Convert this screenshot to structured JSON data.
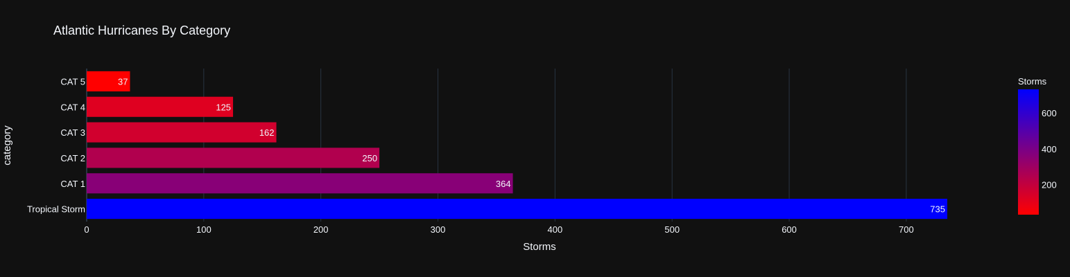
{
  "colors": {
    "background": "#111111",
    "grid": "#283442",
    "text": "#f2f5fa",
    "scale_low": "#ff0000",
    "scale_high": "#0000ff"
  },
  "chart_data": {
    "type": "bar",
    "orientation": "horizontal",
    "title": "Atlantic Hurricanes By Category",
    "xlabel": "Storms",
    "ylabel": "category",
    "xlim": [
      0,
      735
    ],
    "x_ticks": [
      0,
      100,
      200,
      300,
      400,
      500,
      600,
      700
    ],
    "grid": true,
    "categories": [
      "Tropical Storm",
      "CAT 1",
      "CAT 2",
      "CAT 3",
      "CAT 4",
      "CAT 5"
    ],
    "values": [
      735,
      364,
      250,
      162,
      125,
      37
    ],
    "colorbar": {
      "title": "Storms",
      "range": [
        37,
        735
      ],
      "ticks": [
        200,
        400,
        600
      ],
      "placement": "right"
    }
  }
}
